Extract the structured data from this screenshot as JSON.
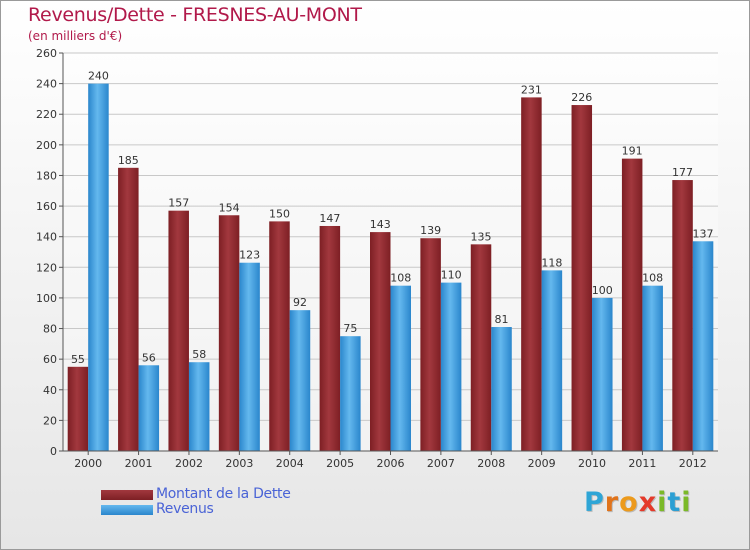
{
  "title": "Revenus/Dette - FRESNES-AU-MONT",
  "subtitle": "(en milliers d'€)",
  "logo": {
    "letters": [
      "P",
      "r",
      "o",
      "x",
      "i",
      "t",
      "i"
    ],
    "colors": [
      "#2ea5d6",
      "#e0731b",
      "#ec9a1c",
      "#e43a2a",
      "#7bb928",
      "#2c9fd3",
      "#7bb928"
    ]
  },
  "colors": {
    "debt": "#7d1f24",
    "debt_light": "#a2383e",
    "revenue": "#2a86cc",
    "revenue_light": "#64b8ee"
  },
  "chart_data": {
    "type": "bar",
    "title": "Revenus/Dette - FRESNES-AU-MONT",
    "ylabel": "(en milliers d'€)",
    "xlabel": "",
    "categories": [
      "2000",
      "2001",
      "2002",
      "2003",
      "2004",
      "2005",
      "2006",
      "2007",
      "2008",
      "2009",
      "2010",
      "2011",
      "2012"
    ],
    "series": [
      {
        "name": "Montant de la Dette",
        "values": [
          55,
          185,
          157,
          154,
          150,
          147,
          143,
          139,
          135,
          231,
          226,
          191,
          177
        ]
      },
      {
        "name": "Revenus",
        "values": [
          240,
          56,
          58,
          123,
          92,
          75,
          108,
          110,
          81,
          118,
          100,
          108,
          137
        ]
      }
    ],
    "ylim": [
      0,
      260
    ],
    "ytick_step": 20,
    "grid": true,
    "legend": "bottom-left"
  }
}
